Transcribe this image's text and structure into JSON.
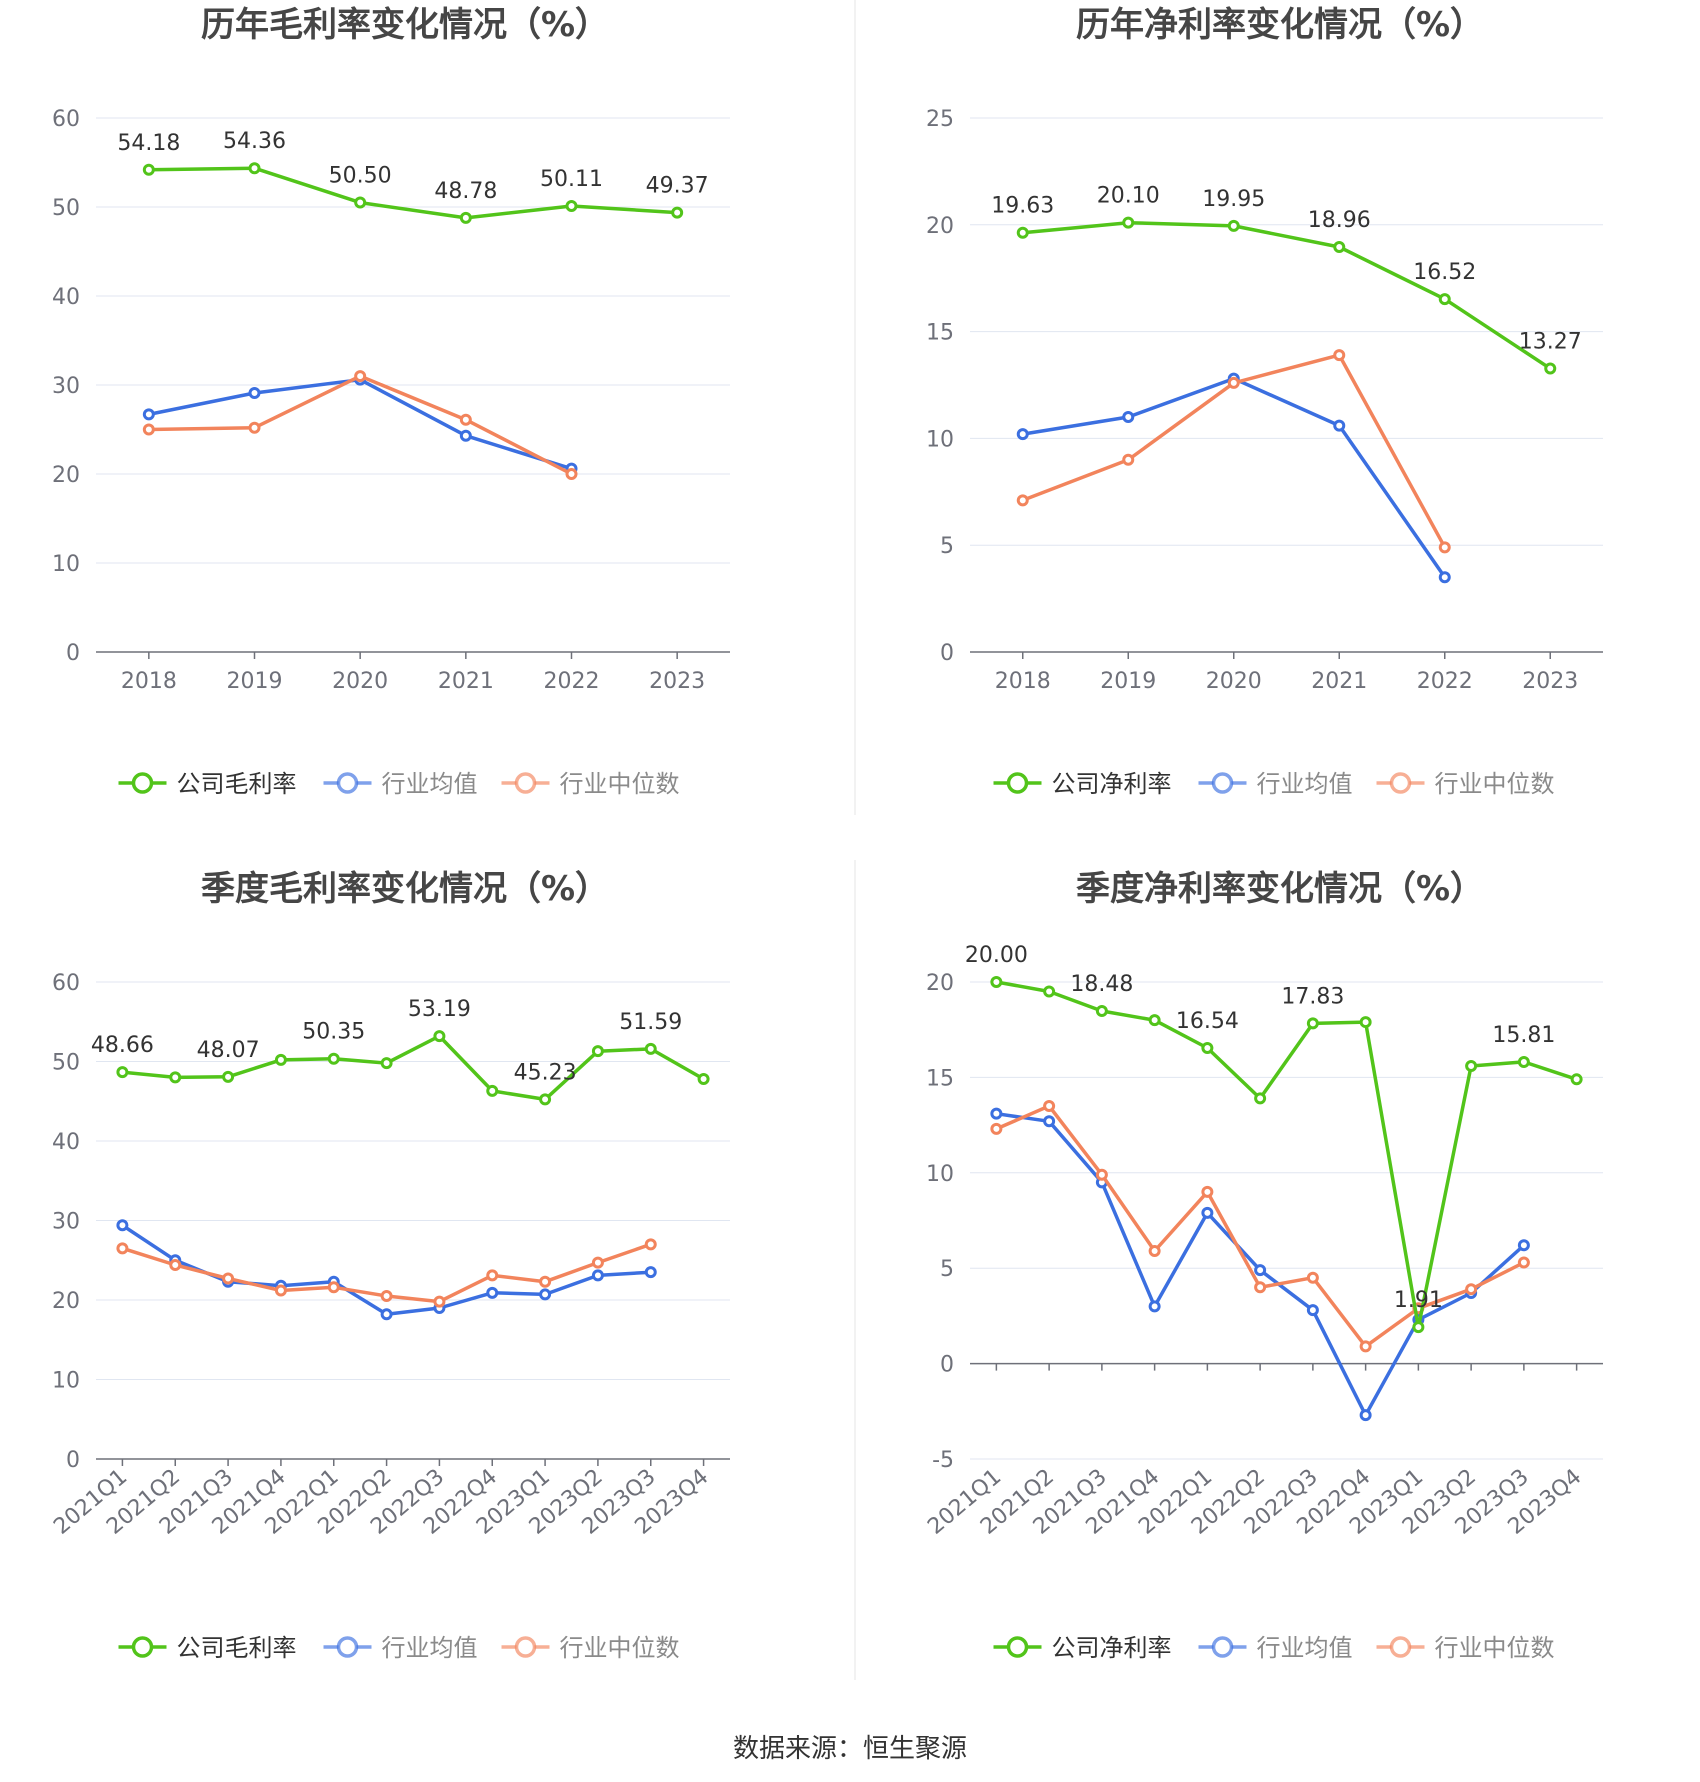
{
  "source_text": "数据来源：恒生聚源",
  "chart_data": [
    {
      "type": "line",
      "title": "历年毛利率变化情况（%）",
      "categories": [
        "2018",
        "2019",
        "2020",
        "2021",
        "2022",
        "2023"
      ],
      "ylim": [
        0,
        60
      ],
      "yticks": [
        0,
        10,
        20,
        30,
        40,
        50,
        60
      ],
      "grid": true,
      "legend_position": "bottom",
      "series": [
        {
          "name": "公司毛利率",
          "color": "#52c41a",
          "labels": true,
          "values": [
            54.18,
            54.36,
            50.5,
            48.78,
            50.11,
            49.37
          ]
        },
        {
          "name": "行业均值",
          "color": "#3b6fe0",
          "labels": false,
          "values": [
            26.7,
            29.1,
            30.6,
            24.3,
            20.6,
            null
          ]
        },
        {
          "name": "行业中位数",
          "color": "#f2845c",
          "labels": false,
          "values": [
            25.0,
            25.2,
            31.0,
            26.1,
            20.0,
            null
          ]
        }
      ],
      "data_labels": [
        "54.18",
        "54.36",
        "50.50",
        "48.78",
        "50.11",
        "49.37"
      ]
    },
    {
      "type": "line",
      "title": "历年净利率变化情况（%）",
      "categories": [
        "2018",
        "2019",
        "2020",
        "2021",
        "2022",
        "2023"
      ],
      "ylim": [
        0,
        25
      ],
      "yticks": [
        0,
        5,
        10,
        15,
        20,
        25
      ],
      "grid": true,
      "legend_position": "bottom",
      "series": [
        {
          "name": "公司净利率",
          "color": "#52c41a",
          "labels": true,
          "values": [
            19.63,
            20.1,
            19.95,
            18.96,
            16.52,
            13.27
          ]
        },
        {
          "name": "行业均值",
          "color": "#3b6fe0",
          "labels": false,
          "values": [
            10.2,
            11.0,
            12.8,
            10.6,
            3.5,
            null
          ]
        },
        {
          "name": "行业中位数",
          "color": "#f2845c",
          "labels": false,
          "values": [
            7.1,
            9.0,
            12.6,
            13.9,
            4.9,
            null
          ]
        }
      ],
      "data_labels": [
        "19.63",
        "20.10",
        "19.95",
        "18.96",
        "16.52",
        "13.27"
      ]
    },
    {
      "type": "line",
      "title": "季度毛利率变化情况（%）",
      "categories": [
        "2021Q1",
        "2021Q2",
        "2021Q3",
        "2021Q4",
        "2022Q1",
        "2022Q2",
        "2022Q3",
        "2022Q4",
        "2023Q1",
        "2023Q2",
        "2023Q3",
        "2023Q4"
      ],
      "ylim": [
        0,
        60
      ],
      "yticks": [
        0,
        10,
        20,
        30,
        40,
        50,
        60
      ],
      "grid": true,
      "legend_position": "bottom",
      "series": [
        {
          "name": "公司毛利率",
          "color": "#52c41a",
          "labels": true,
          "values": [
            48.66,
            48.0,
            48.07,
            50.2,
            50.35,
            49.8,
            53.19,
            46.3,
            45.23,
            51.3,
            51.59,
            47.8
          ]
        },
        {
          "name": "行业均值",
          "color": "#3b6fe0",
          "labels": false,
          "values": [
            29.4,
            25.0,
            22.3,
            21.8,
            22.3,
            18.2,
            19.0,
            20.9,
            20.7,
            23.1,
            23.5,
            null
          ]
        },
        {
          "name": "行业中位数",
          "color": "#f2845c",
          "labels": false,
          "values": [
            26.5,
            24.4,
            22.7,
            21.2,
            21.6,
            20.5,
            19.8,
            23.1,
            22.3,
            24.7,
            27.0,
            null
          ]
        }
      ],
      "data_labels": [
        "48.66",
        "",
        "48.07",
        "",
        "50.35",
        "",
        "53.19",
        "",
        "45.23",
        "",
        "51.59",
        ""
      ]
    },
    {
      "type": "line",
      "title": "季度净利率变化情况（%）",
      "categories": [
        "2021Q1",
        "2021Q2",
        "2021Q3",
        "2021Q4",
        "2022Q1",
        "2022Q2",
        "2022Q3",
        "2022Q4",
        "2023Q1",
        "2023Q2",
        "2023Q3",
        "2023Q4"
      ],
      "ylim": [
        -5,
        20
      ],
      "yticks": [
        -5,
        0,
        5,
        10,
        15,
        20
      ],
      "grid": true,
      "legend_position": "bottom",
      "series": [
        {
          "name": "公司净利率",
          "color": "#52c41a",
          "labels": true,
          "values": [
            20.0,
            19.5,
            18.48,
            18.0,
            16.54,
            13.9,
            17.83,
            17.9,
            1.91,
            15.6,
            15.81,
            14.9
          ]
        },
        {
          "name": "行业均值",
          "color": "#3b6fe0",
          "labels": false,
          "values": [
            13.1,
            12.7,
            9.5,
            3.0,
            7.9,
            4.9,
            2.8,
            -2.7,
            2.3,
            3.7,
            6.2,
            null
          ]
        },
        {
          "name": "行业中位数",
          "color": "#f2845c",
          "labels": false,
          "values": [
            12.3,
            13.5,
            9.9,
            5.9,
            9.0,
            4.0,
            4.5,
            0.9,
            2.9,
            3.9,
            5.3,
            null
          ]
        }
      ],
      "data_labels": [
        "20.00",
        "",
        "18.48",
        "",
        "16.54",
        "",
        "17.83",
        "",
        "1.91",
        "",
        "15.81",
        ""
      ]
    }
  ]
}
